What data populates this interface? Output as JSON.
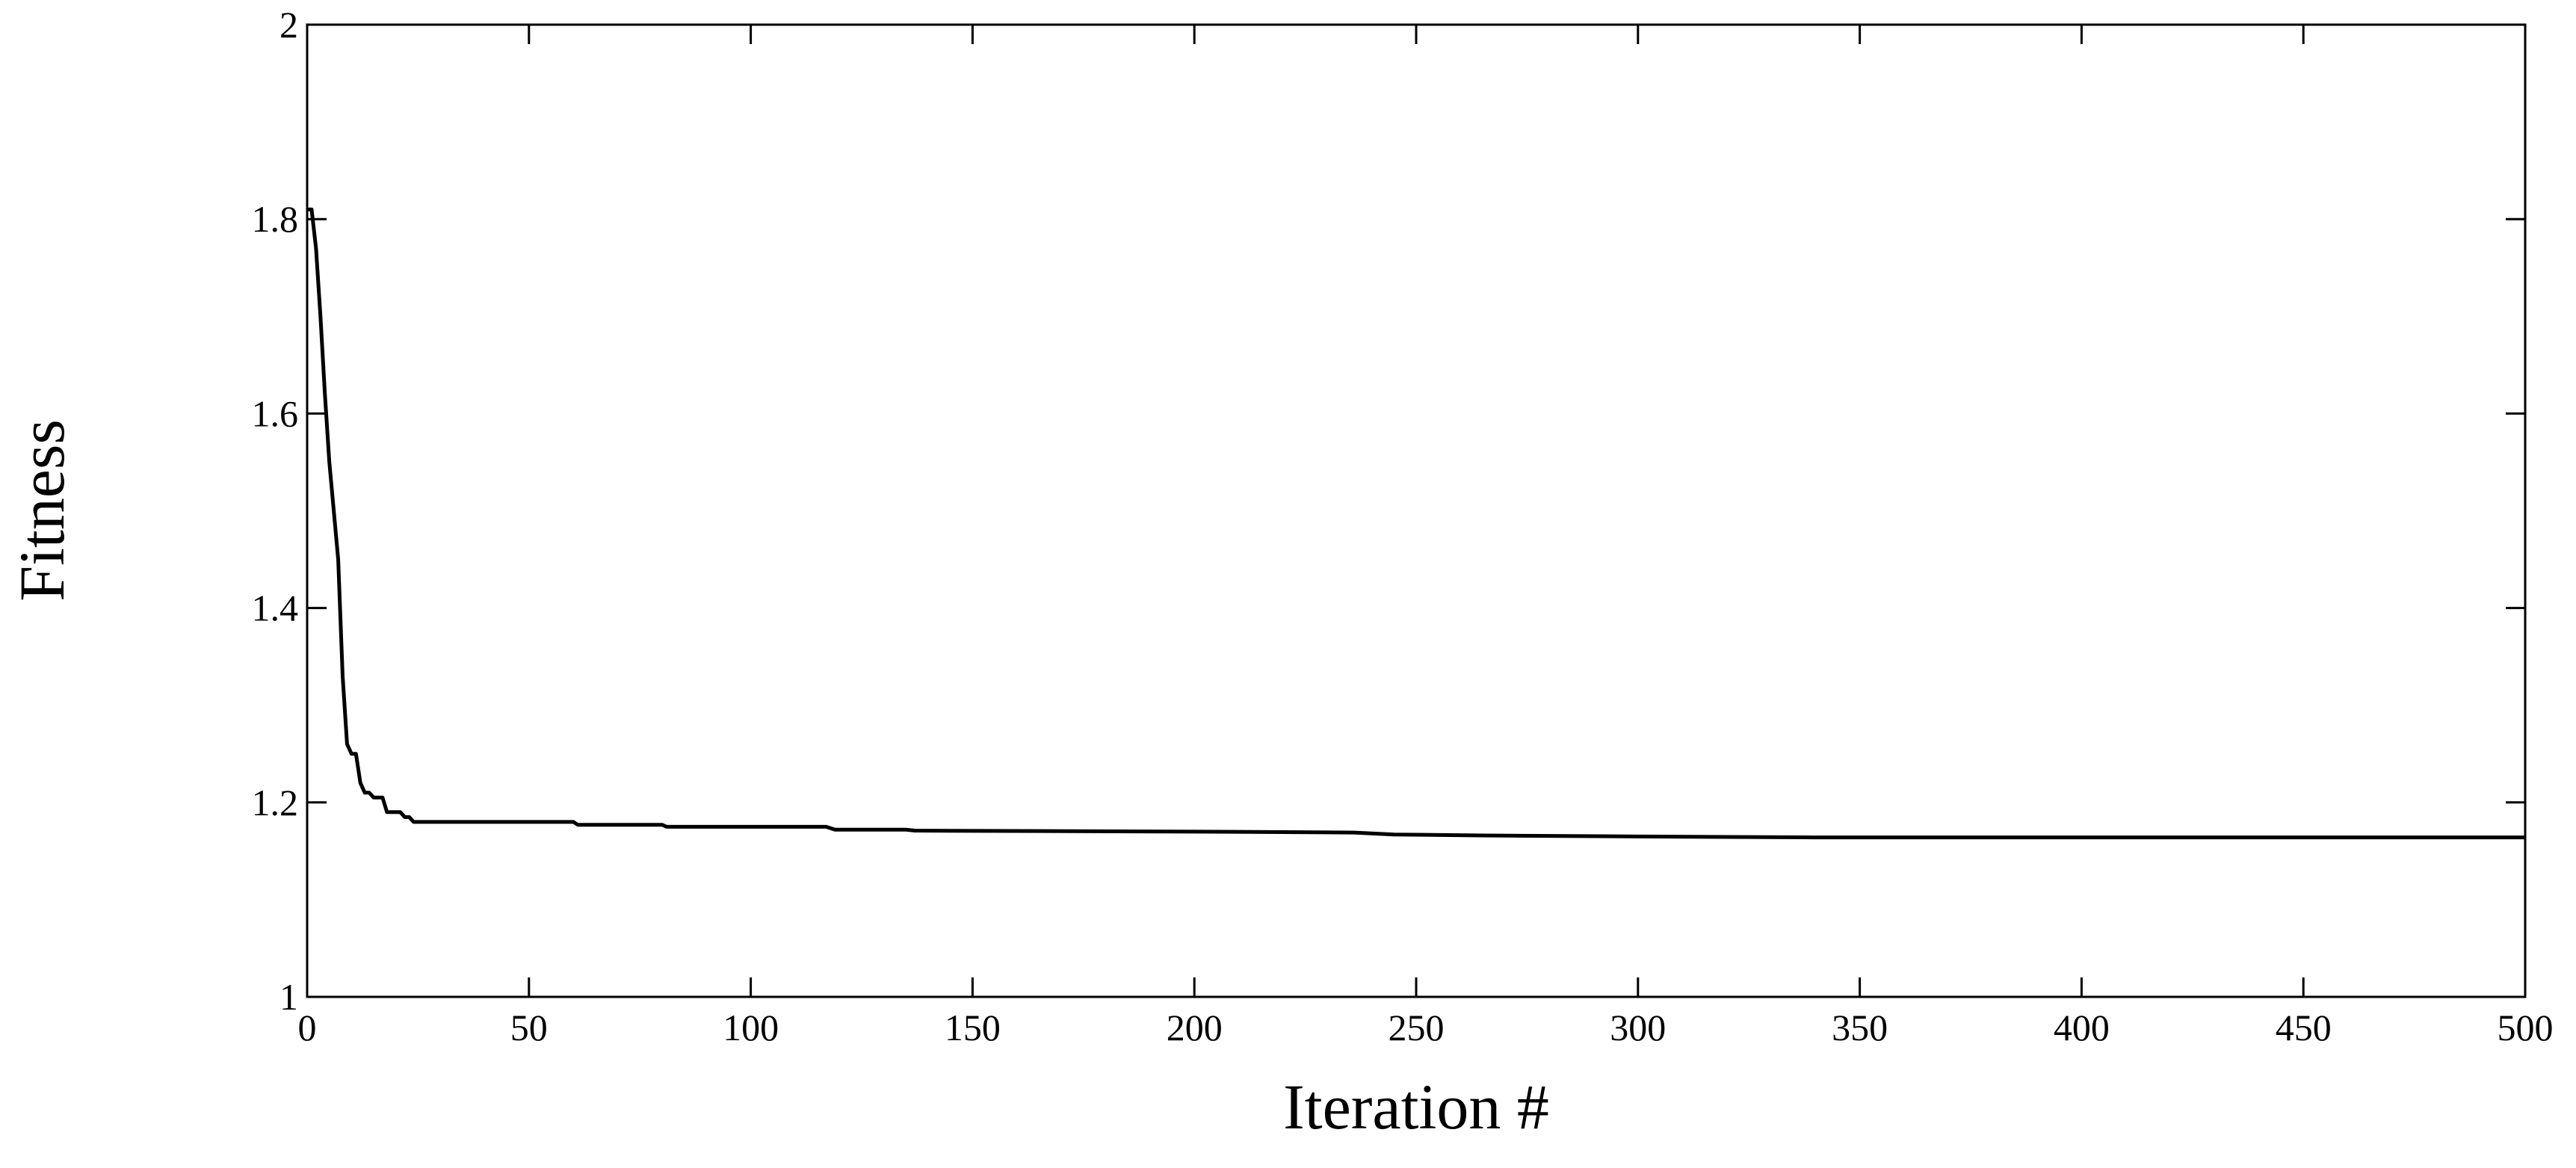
{
  "chart_data": {
    "type": "line",
    "xlabel": "Iteration #",
    "ylabel": "Fitness",
    "x": [
      0,
      1,
      2,
      3,
      4,
      5,
      6,
      7,
      8,
      9,
      10,
      11,
      12,
      13,
      14,
      15,
      17,
      18,
      21,
      22,
      23,
      24,
      60,
      61,
      80,
      81,
      117,
      119,
      135,
      137,
      200,
      236,
      245,
      265,
      300,
      340,
      500
    ],
    "series": [
      {
        "color": "#000000",
        "values": [
          1.81,
          1.81,
          1.77,
          1.7,
          1.62,
          1.55,
          1.5,
          1.45,
          1.33,
          1.26,
          1.25,
          1.25,
          1.22,
          1.21,
          1.21,
          1.205,
          1.205,
          1.19,
          1.19,
          1.185,
          1.185,
          1.18,
          1.18,
          1.177,
          1.177,
          1.175,
          1.175,
          1.172,
          1.172,
          1.171,
          1.17,
          1.169,
          1.167,
          1.166,
          1.165,
          1.164,
          1.164
        ]
      }
    ],
    "xlim": [
      0,
      500
    ],
    "ylim": [
      1,
      2
    ],
    "xticks": [
      0,
      50,
      100,
      150,
      200,
      250,
      300,
      350,
      400,
      450,
      500
    ],
    "yticks": [
      1,
      1.2,
      1.4,
      1.6,
      1.8,
      2
    ],
    "grid": false
  }
}
